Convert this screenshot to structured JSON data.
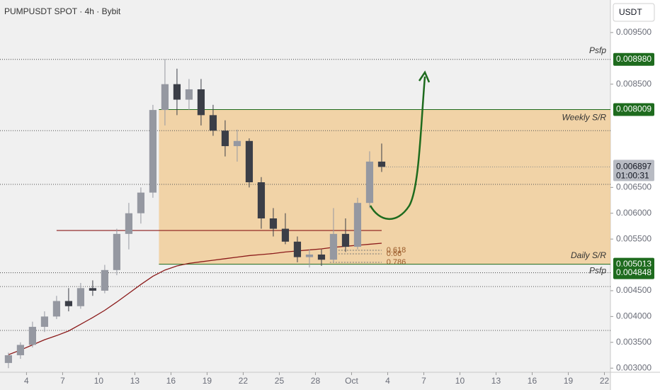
{
  "chart_data": {
    "type": "candlestick",
    "title": "PUMPUSDT SPOT · 4h · Bybit",
    "currency_button": "USDT",
    "x": [
      2.5,
      3.5,
      4.5,
      5.5,
      6.5,
      7.5,
      8.5,
      9.5,
      10.5,
      11.5,
      12.5,
      13.5,
      14.5,
      15.5,
      16.5,
      17.5,
      18.5,
      19.5,
      20.5,
      21.5,
      22.5,
      23.5,
      24.5,
      25.5,
      26.5,
      27.5,
      28.5,
      29.5,
      30.5,
      31.5,
      32.5,
      33.5
    ],
    "open": [
      0.0031,
      0.00325,
      0.00345,
      0.0038,
      0.004,
      0.0043,
      0.0042,
      0.00455,
      0.0045,
      0.0049,
      0.0056,
      0.006,
      0.0064,
      0.008,
      0.0085,
      0.0082,
      0.0084,
      0.0079,
      0.0076,
      0.0073,
      0.0074,
      0.0066,
      0.0059,
      0.0057,
      0.00545,
      0.00515,
      0.0052,
      0.0051,
      0.0056,
      0.00535,
      0.0062,
      0.007
    ],
    "high": [
      0.0033,
      0.0035,
      0.0039,
      0.0041,
      0.0044,
      0.00455,
      0.00465,
      0.0047,
      0.005,
      0.0057,
      0.0062,
      0.0065,
      0.0081,
      0.00898,
      0.0088,
      0.0086,
      0.0086,
      0.0081,
      0.0078,
      0.00762,
      0.00745,
      0.0067,
      0.0061,
      0.006,
      0.00555,
      0.0053,
      0.0053,
      0.0061,
      0.0059,
      0.0063,
      0.0072,
      0.00735
    ],
    "low": [
      0.003,
      0.00318,
      0.0034,
      0.0037,
      0.00395,
      0.0041,
      0.00415,
      0.0044,
      0.00445,
      0.0048,
      0.0053,
      0.0058,
      0.0063,
      0.0077,
      0.0079,
      0.008,
      0.0077,
      0.0075,
      0.0071,
      0.007,
      0.0065,
      0.0057,
      0.00555,
      0.0054,
      0.00505,
      0.00495,
      0.00498,
      0.00505,
      0.00525,
      0.0053,
      0.0061,
      0.0068
    ],
    "close": [
      0.00325,
      0.00345,
      0.0038,
      0.004,
      0.0043,
      0.0042,
      0.00455,
      0.0045,
      0.0049,
      0.0056,
      0.006,
      0.0064,
      0.008,
      0.0085,
      0.0082,
      0.0084,
      0.0079,
      0.0076,
      0.0073,
      0.0074,
      0.0066,
      0.0059,
      0.0057,
      0.00545,
      0.00515,
      0.0052,
      0.0051,
      0.0056,
      0.00535,
      0.0062,
      0.007,
      0.006897
    ],
    "up_color": "#9598a1",
    "down_color": "#3b3e47",
    "moving_average": {
      "color": "#8b1a1a",
      "values": [
        0.00326,
        0.00335,
        0.00345,
        0.00355,
        0.00363,
        0.00372,
        0.00385,
        0.00398,
        0.00412,
        0.00428,
        0.00445,
        0.00462,
        0.00478,
        0.0049,
        0.00498,
        0.00503,
        0.00506,
        0.00509,
        0.00512,
        0.00515,
        0.00518,
        0.0052,
        0.00522,
        0.00525,
        0.00527,
        0.00529,
        0.00531,
        0.00534,
        0.00536,
        0.00538,
        0.0054,
        0.00542
      ]
    },
    "countdown": "01:00:31",
    "xlim": [
      1.8,
      52.5
    ],
    "ylim": [
      0.00292,
      0.01013
    ],
    "xticks": [
      4,
      7,
      10,
      13,
      16,
      19,
      22,
      25,
      28,
      {
        "value": 31,
        "label": "Oct"
      },
      {
        "value": 34,
        "label": "4"
      },
      {
        "value": 37,
        "label": "7"
      },
      {
        "value": 40,
        "label": "10"
      },
      {
        "value": 43,
        "label": "13"
      },
      {
        "value": 46,
        "label": "16"
      },
      {
        "value": 49,
        "label": "19"
      },
      {
        "value": 52,
        "label": "22"
      }
    ],
    "yticks": [
      {
        "value": 0.0095,
        "label": "0.009500"
      },
      {
        "value": 0.0085,
        "label": "0.008500"
      },
      {
        "value": 0.0065,
        "label": "0.006500"
      },
      {
        "value": 0.006,
        "label": "0.006000"
      },
      {
        "value": 0.0055,
        "label": "0.005500"
      },
      {
        "value": 0.0045,
        "label": "0.004500"
      },
      {
        "value": 0.004,
        "label": "0.004000"
      },
      {
        "value": 0.0035,
        "label": "0.003500"
      },
      {
        "value": 0.003,
        "label": "0.003000"
      }
    ],
    "zone_start": 15,
    "zone_color": "#f2c98f",
    "levels": [
      {
        "price": {
          "value": 0.00898,
          "label": "0.008980"
        },
        "text": "Psfp",
        "style": "dotted"
      },
      {
        "price": 0.008009,
        "text": "Weekly S/R",
        "style": "solid"
      },
      {
        "price": 0.005013,
        "text": "Daily S/R",
        "style": "solid"
      },
      {
        "price": 0.004848,
        "text": "Psfp",
        "style": "dotted"
      }
    ],
    "red_level": {
      "price": 0.005666,
      "from": 6.5,
      "to": 33.5
    },
    "dotted_levels": [
      0.00656,
      0.0076,
      0.00458,
      0.00373
    ],
    "fib": [
      {
        "label": "0.618",
        "price": 0.005282
      },
      {
        "label": "0.66",
        "price": 0.005213
      },
      {
        "label": "0.786",
        "price": 0.005048
      }
    ]
  }
}
